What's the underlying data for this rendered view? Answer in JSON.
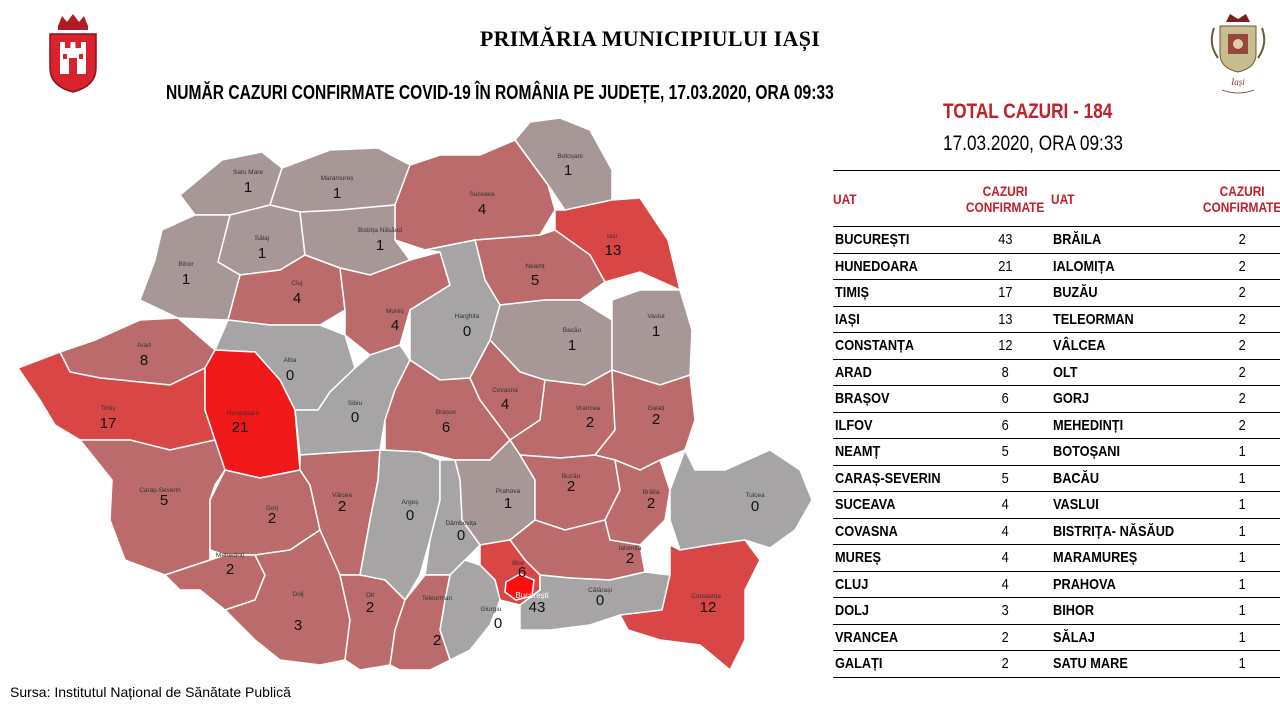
{
  "header": {
    "title": "PRIMĂRIA MUNICIPIULUI IAȘI",
    "subtitle": "NUMĂR CAZURI CONFIRMATE COVID-19 ÎN ROMÂNIA PE JUDEȚE, 17.03.2020, ORA 09:33"
  },
  "summary": {
    "total_line": "TOTAL CAZURI -  184",
    "date_line": "17.03.2020, ORA 09:33"
  },
  "logos": {
    "left": "coat-of-arms-iasi",
    "right": "iasi-city-emblem",
    "right_text": "Iași"
  },
  "colors": {
    "accent_red": "#c0202a",
    "zero": "#a6a4a5",
    "low": "#a79797",
    "mid": "#bb6b6b",
    "high": "#d94646",
    "max": "#f01818"
  },
  "map": {
    "counties": [
      {
        "name": "Satu Mare",
        "value": "1"
      },
      {
        "name": "Maramureș",
        "value": "1"
      },
      {
        "name": "Botoșani",
        "value": "1"
      },
      {
        "name": "Suceava",
        "value": "4"
      },
      {
        "name": "Iași",
        "value": "13"
      },
      {
        "name": "Sălaj",
        "value": "1"
      },
      {
        "name": "Bistrița Năsăud",
        "value": "1"
      },
      {
        "name": "Bihor",
        "value": "1"
      },
      {
        "name": "Cluj",
        "value": "4"
      },
      {
        "name": "Neamț",
        "value": "5"
      },
      {
        "name": "Mureș",
        "value": "4"
      },
      {
        "name": "Harghita",
        "value": "0"
      },
      {
        "name": "Bacău",
        "value": "1"
      },
      {
        "name": "Vaslui",
        "value": "1"
      },
      {
        "name": "Arad",
        "value": "8"
      },
      {
        "name": "Alba",
        "value": "0"
      },
      {
        "name": "Timiș",
        "value": "17"
      },
      {
        "name": "Hunedoara",
        "value": "21"
      },
      {
        "name": "Sibiu",
        "value": "0"
      },
      {
        "name": "Brașov",
        "value": "6"
      },
      {
        "name": "Covasna",
        "value": "4"
      },
      {
        "name": "Vrancea",
        "value": "2"
      },
      {
        "name": "Galați",
        "value": "2"
      },
      {
        "name": "Caraș-Severin",
        "value": "5"
      },
      {
        "name": "Gorj",
        "value": "2"
      },
      {
        "name": "Vâlcea",
        "value": "2"
      },
      {
        "name": "Argeș",
        "value": "0"
      },
      {
        "name": "Prahova",
        "value": "1"
      },
      {
        "name": "Buzău",
        "value": "2"
      },
      {
        "name": "Brăila",
        "value": "2"
      },
      {
        "name": "Tulcea",
        "value": "0"
      },
      {
        "name": "Dâmbovița",
        "value": "0"
      },
      {
        "name": "Ialomița",
        "value": "2"
      },
      {
        "name": "Mehedinți",
        "value": "2"
      },
      {
        "name": "Ilfov",
        "value": "6"
      },
      {
        "name": "București",
        "value": "43"
      },
      {
        "name": "Dolj",
        "value": "3"
      },
      {
        "name": "Olt",
        "value": "2"
      },
      {
        "name": "Giurgiu",
        "value": "0"
      },
      {
        "name": "Călărași",
        "value": "0"
      },
      {
        "name": "Constanța",
        "value": "12"
      },
      {
        "name": "Teleorman",
        "value": "2"
      }
    ]
  },
  "table": {
    "headers": [
      "UAT",
      "CAZURI CONFIRMATE",
      "UAT",
      "CAZURI CONFIRMATE"
    ],
    "rows": [
      [
        "BUCUREȘTI",
        "43",
        "BRĂILA",
        "2"
      ],
      [
        "HUNEDOARA",
        "21",
        "IALOMIȚA",
        "2"
      ],
      [
        "TIMIȘ",
        "17",
        "BUZĂU",
        "2"
      ],
      [
        "IAȘI",
        "13",
        "TELEORMAN",
        "2"
      ],
      [
        "CONSTANȚA",
        "12",
        "VÂLCEA",
        "2"
      ],
      [
        "ARAD",
        "8",
        "OLT",
        "2"
      ],
      [
        "BRAȘOV",
        "6",
        "GORJ",
        "2"
      ],
      [
        "ILFOV",
        "6",
        "MEHEDINȚI",
        "2"
      ],
      [
        "NEAMȚ",
        "5",
        "BOTOȘANI",
        "1"
      ],
      [
        "CARAȘ-SEVERIN",
        "5",
        "BACĂU",
        "1"
      ],
      [
        "SUCEAVA",
        "4",
        "VASLUI",
        "1"
      ],
      [
        "COVASNA",
        "4",
        "BISTRIȚA- NĂSĂUD",
        "1"
      ],
      [
        "MUREȘ",
        "4",
        "MARAMUREȘ",
        "1"
      ],
      [
        "CLUJ",
        "4",
        "PRAHOVA",
        "1"
      ],
      [
        "DOLJ",
        "3",
        "BIHOR",
        "1"
      ],
      [
        "VRANCEA",
        "2",
        "SĂLAJ",
        "1"
      ],
      [
        "GALAȚI",
        "2",
        "SATU MARE",
        "1"
      ]
    ]
  },
  "footer": {
    "source": "Sursa: Institutul Național de Sănătate Publică"
  }
}
